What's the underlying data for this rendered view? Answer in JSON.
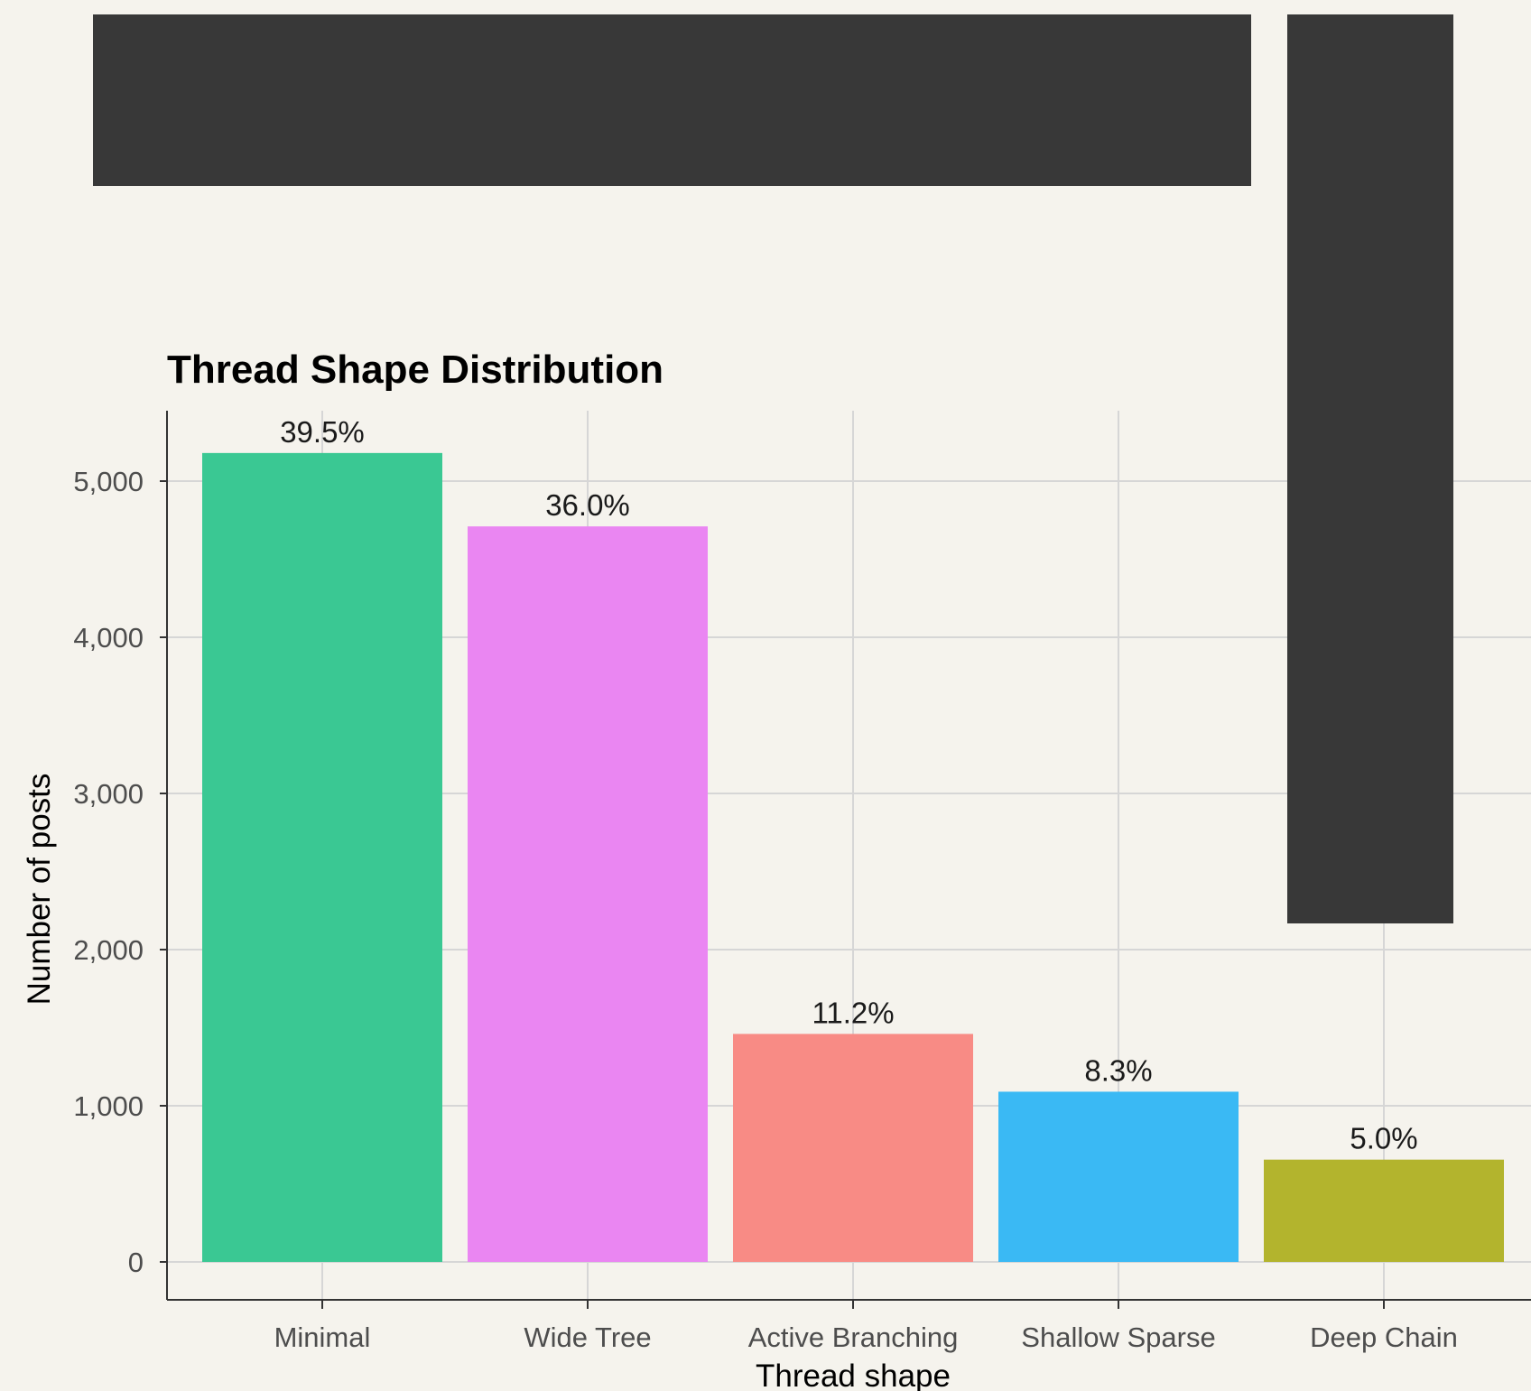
{
  "chart_data": {
    "type": "bar",
    "title": "Thread Shape Distribution",
    "xlabel": "Thread shape",
    "ylabel": "Number of posts",
    "categories": [
      "Minimal",
      "Wide Tree",
      "Active Branching",
      "Shallow Sparse",
      "Deep Chain"
    ],
    "values": [
      5180,
      4710,
      1460,
      1090,
      655
    ],
    "labels": [
      "39.5%",
      "36.0%",
      "11.2%",
      "8.3%",
      "5.0%"
    ],
    "colors": [
      "#3ac893",
      "#ea86f2",
      "#f88b85",
      "#3ab9f4",
      "#b3b42d"
    ],
    "yticks": [
      0,
      1000,
      2000,
      3000,
      4000,
      5000
    ],
    "ytick_labels": [
      "0",
      "1,000",
      "2,000",
      "3,000",
      "4,000",
      "5,000"
    ],
    "ylim": [
      0,
      5440
    ],
    "grid": true,
    "legend": "none"
  },
  "redactions": [
    {
      "name": "redaction-top-banner",
      "color": "#383838"
    },
    {
      "name": "redaction-right-column",
      "color": "#383838"
    }
  ]
}
